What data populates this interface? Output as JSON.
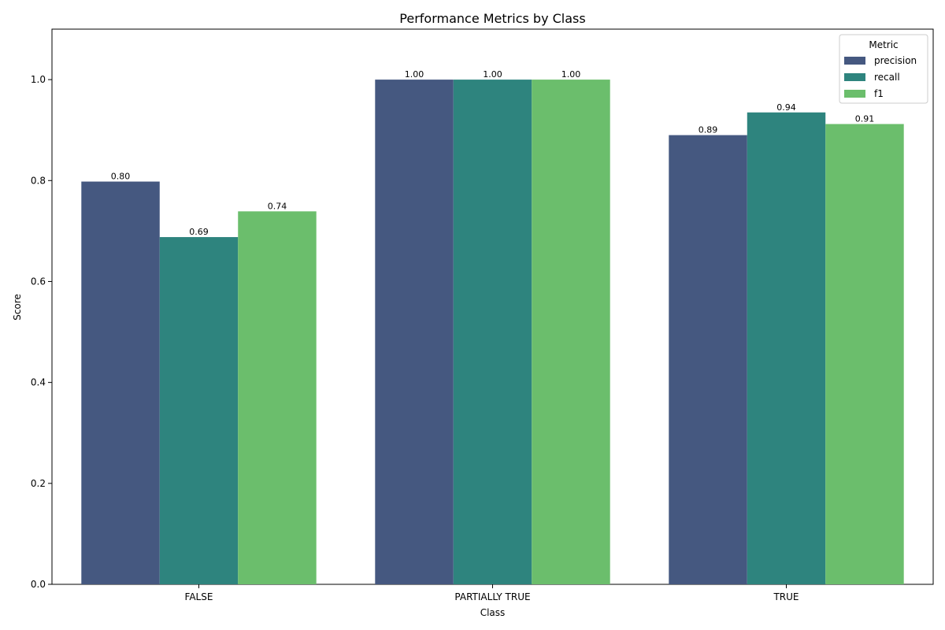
{
  "chart_data": {
    "type": "bar",
    "title": "Performance Metrics by Class",
    "xlabel": "Class",
    "ylabel": "Score",
    "categories": [
      "FALSE",
      "PARTIALLY TRUE",
      "TRUE"
    ],
    "series": [
      {
        "name": "precision",
        "values": [
          0.798,
          1.0,
          0.89
        ],
        "labels": [
          "0.80",
          "1.00",
          "0.89"
        ],
        "color": "#455880"
      },
      {
        "name": "recall",
        "values": [
          0.688,
          1.0,
          0.935
        ],
        "labels": [
          "0.69",
          "1.00",
          "0.94"
        ],
        "color": "#2e847e"
      },
      {
        "name": "f1",
        "values": [
          0.739,
          1.0,
          0.912
        ],
        "labels": [
          "0.74",
          "1.00",
          "0.91"
        ],
        "color": "#6bbe6c"
      }
    ],
    "ylim": [
      0,
      1.1
    ],
    "yticks": [
      0.0,
      0.2,
      0.4,
      0.6,
      0.8,
      1.0
    ],
    "ytick_labels": [
      "0.0",
      "0.2",
      "0.4",
      "0.6",
      "0.8",
      "1.0"
    ],
    "legend": {
      "title": "Metric",
      "position": "top-right"
    },
    "grid": false
  }
}
